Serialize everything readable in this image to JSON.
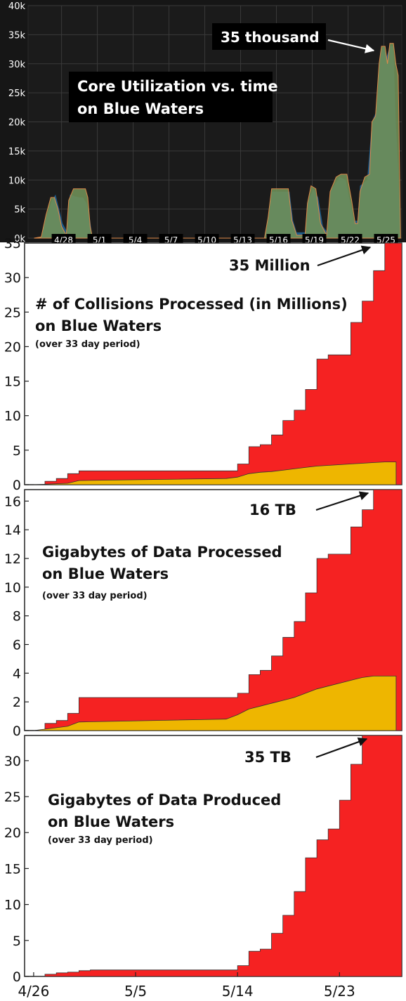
{
  "chart_data": [
    {
      "type": "area",
      "title": "Core Utilization vs. time on Blue Waters",
      "title_lines": [
        "Core Utilization vs. time",
        "on Blue Waters"
      ],
      "annotation": "35 thousand",
      "ytick_labels": [
        "0k",
        "5k",
        "10k",
        "15k",
        "20k",
        "25k",
        "30k",
        "35k",
        "40k"
      ],
      "yticks": [
        0,
        5000,
        10000,
        15000,
        20000,
        25000,
        30000,
        35000,
        40000
      ],
      "ylim": [
        0,
        40000
      ],
      "xtick_labels": [
        "4/28",
        "5/1",
        "5/4",
        "5/7",
        "5/10",
        "5/13",
        "5/16",
        "5/19",
        "5/22",
        "5/25"
      ],
      "xticks": [
        2,
        5,
        8,
        11,
        14,
        17,
        20,
        23,
        26,
        29
      ],
      "xlim": [
        -0.8,
        30.5
      ],
      "grid": true,
      "background": "dark",
      "series": [
        {
          "color": "#1e5c8a",
          "points": [
            [
              -0.3,
              0
            ],
            [
              0.3,
              200
            ],
            [
              0.7,
              3500
            ],
            [
              1.2,
              6500
            ],
            [
              1.5,
              7500
            ],
            [
              1.8,
              5000
            ],
            [
              2.1,
              2500
            ],
            [
              2.5,
              1000
            ],
            [
              2.7,
              7500
            ],
            [
              3.1,
              7200
            ],
            [
              3.5,
              7000
            ],
            [
              3.8,
              7000
            ],
            [
              4.1,
              6000
            ],
            [
              4.4,
              3000
            ],
            [
              4.6,
              0
            ],
            [
              5.0,
              0
            ],
            [
              19.0,
              0
            ],
            [
              19.3,
              3000
            ],
            [
              19.6,
              8000
            ],
            [
              21.1,
              8000
            ],
            [
              21.4,
              3000
            ],
            [
              21.7,
              1000
            ],
            [
              22.4,
              1000
            ],
            [
              22.6,
              6000
            ],
            [
              23.1,
              8500
            ],
            [
              23.5,
              7000
            ],
            [
              23.9,
              2000
            ],
            [
              24.3,
              1000
            ],
            [
              24.5,
              8000
            ],
            [
              25.3,
              10500
            ],
            [
              25.8,
              10000
            ],
            [
              26.2,
              6000
            ],
            [
              26.5,
              3000
            ],
            [
              26.8,
              3000
            ],
            [
              27.0,
              9000
            ],
            [
              27.6,
              10000
            ],
            [
              28.0,
              20000
            ],
            [
              28.4,
              22000
            ],
            [
              28.7,
              32000
            ],
            [
              29.0,
              33000
            ],
            [
              29.2,
              31000
            ],
            [
              29.5,
              33000
            ],
            [
              29.8,
              33000
            ],
            [
              30.0,
              20000
            ],
            [
              30.2,
              12000
            ],
            [
              30.4,
              0
            ]
          ]
        },
        {
          "color": "#6f8f58",
          "points": [
            [
              -0.3,
              0
            ],
            [
              0.3,
              200
            ],
            [
              0.7,
              4000
            ],
            [
              1.1,
              7000
            ],
            [
              1.4,
              7000
            ],
            [
              1.7,
              5000
            ],
            [
              2.0,
              2000
            ],
            [
              2.4,
              500
            ],
            [
              2.6,
              6500
            ],
            [
              3.0,
              8500
            ],
            [
              4.0,
              8500
            ],
            [
              4.2,
              7000
            ],
            [
              4.4,
              2000
            ],
            [
              4.6,
              0
            ],
            [
              19.0,
              0
            ],
            [
              19.3,
              3500
            ],
            [
              19.6,
              8500
            ],
            [
              21.0,
              8500
            ],
            [
              21.3,
              3000
            ],
            [
              21.7,
              500
            ],
            [
              22.4,
              500
            ],
            [
              22.6,
              6000
            ],
            [
              22.9,
              9000
            ],
            [
              23.3,
              8500
            ],
            [
              23.7,
              2500
            ],
            [
              24.2,
              500
            ],
            [
              24.5,
              8000
            ],
            [
              25.0,
              10500
            ],
            [
              25.4,
              11000
            ],
            [
              25.9,
              11000
            ],
            [
              26.3,
              6500
            ],
            [
              26.6,
              2500
            ],
            [
              26.8,
              2500
            ],
            [
              27.0,
              8000
            ],
            [
              27.4,
              10500
            ],
            [
              27.8,
              11000
            ],
            [
              28.0,
              20000
            ],
            [
              28.3,
              21000
            ],
            [
              28.6,
              30000
            ],
            [
              28.8,
              33000
            ],
            [
              29.1,
              33000
            ],
            [
              29.3,
              30000
            ],
            [
              29.5,
              33500
            ],
            [
              29.8,
              33500
            ],
            [
              30.0,
              30000
            ],
            [
              30.2,
              28000
            ],
            [
              30.4,
              0
            ]
          ]
        }
      ]
    },
    {
      "type": "area",
      "title": "# of Collisions Processed (in Millions) on Blue Waters",
      "title_lines": [
        "# of Collisions Processed (in Millions)",
        "on Blue Waters"
      ],
      "subtitle": "(over 33 day period)",
      "annotation": "35 Million",
      "ytick_labels": [
        "0",
        "5",
        "10",
        "15",
        "20",
        "25",
        "30",
        "35"
      ],
      "yticks": [
        0,
        5,
        10,
        15,
        20,
        25,
        30,
        35
      ],
      "ylim": [
        0,
        35
      ],
      "xlim": [
        -0.8,
        32.5
      ],
      "grid": false,
      "series": [
        {
          "color": "#f52222",
          "step": [
            [
              0,
              0
            ],
            [
              1,
              0.5
            ],
            [
              2,
              0.9
            ],
            [
              3,
              1.6
            ],
            [
              4,
              2.0
            ],
            [
              5,
              2.0
            ],
            [
              6,
              2.0
            ],
            [
              7,
              2.0
            ],
            [
              8,
              2.0
            ],
            [
              9,
              2.0
            ],
            [
              10,
              2.0
            ],
            [
              11,
              2.0
            ],
            [
              12,
              2.0
            ],
            [
              13,
              2.0
            ],
            [
              14,
              2.0
            ],
            [
              15,
              2.0
            ],
            [
              16,
              2.0
            ],
            [
              17,
              2.0
            ],
            [
              18,
              3.0
            ],
            [
              19,
              5.5
            ],
            [
              20,
              5.8
            ],
            [
              21,
              7.2
            ],
            [
              22,
              9.3
            ],
            [
              23,
              10.8
            ],
            [
              24,
              13.8
            ],
            [
              25,
              18.2
            ],
            [
              26,
              18.8
            ],
            [
              27,
              18.8
            ],
            [
              28,
              23.5
            ],
            [
              29,
              26.6
            ],
            [
              30,
              31.0
            ],
            [
              31,
              35.0
            ],
            [
              32,
              35.0
            ]
          ]
        },
        {
          "color": "#eeb600",
          "points": [
            [
              0,
              0
            ],
            [
              3,
              0.2
            ],
            [
              4,
              0.6
            ],
            [
              17,
              0.9
            ],
            [
              18,
              1.1
            ],
            [
              19,
              1.6
            ],
            [
              20,
              1.8
            ],
            [
              21,
              1.9
            ],
            [
              22,
              2.1
            ],
            [
              23,
              2.3
            ],
            [
              24,
              2.5
            ],
            [
              25,
              2.7
            ],
            [
              26,
              2.8
            ],
            [
              27,
              2.9
            ],
            [
              28,
              3.0
            ],
            [
              29,
              3.1
            ],
            [
              30,
              3.2
            ],
            [
              31,
              3.3
            ],
            [
              32,
              3.3
            ]
          ]
        }
      ]
    },
    {
      "type": "area",
      "title": "Gigabytes of Data Processed on Blue Waters",
      "title_lines": [
        "Gigabytes of Data Processed",
        "on Blue Waters"
      ],
      "subtitle": "(over 33 day period)",
      "annotation": "16 TB",
      "ytick_labels": [
        "0",
        "2",
        "4",
        "6",
        "8",
        "10",
        "12",
        "14",
        "16"
      ],
      "yticks": [
        0,
        2,
        4,
        6,
        8,
        10,
        12,
        14,
        16
      ],
      "ylim": [
        0,
        16.8
      ],
      "xlim": [
        -0.8,
        32.5
      ],
      "grid": false,
      "series": [
        {
          "color": "#f52222",
          "step": [
            [
              0,
              0
            ],
            [
              1,
              0.5
            ],
            [
              2,
              0.7
            ],
            [
              3,
              1.2
            ],
            [
              4,
              2.3
            ],
            [
              5,
              2.3
            ],
            [
              6,
              2.3
            ],
            [
              7,
              2.3
            ],
            [
              8,
              2.3
            ],
            [
              9,
              2.3
            ],
            [
              10,
              2.3
            ],
            [
              11,
              2.3
            ],
            [
              12,
              2.3
            ],
            [
              13,
              2.3
            ],
            [
              14,
              2.3
            ],
            [
              15,
              2.3
            ],
            [
              16,
              2.3
            ],
            [
              17,
              2.3
            ],
            [
              18,
              2.6
            ],
            [
              19,
              3.9
            ],
            [
              20,
              4.2
            ],
            [
              21,
              5.2
            ],
            [
              22,
              6.5
            ],
            [
              23,
              7.6
            ],
            [
              24,
              9.6
            ],
            [
              25,
              12.0
            ],
            [
              26,
              12.3
            ],
            [
              27,
              12.3
            ],
            [
              28,
              14.2
            ],
            [
              29,
              15.4
            ],
            [
              30,
              16.8
            ],
            [
              31,
              16.8
            ],
            [
              32,
              16.8
            ]
          ]
        },
        {
          "color": "#eeb600",
          "points": [
            [
              0,
              0
            ],
            [
              3,
              0.3
            ],
            [
              4,
              0.6
            ],
            [
              17,
              0.8
            ],
            [
              18,
              1.1
            ],
            [
              19,
              1.5
            ],
            [
              20,
              1.7
            ],
            [
              21,
              1.9
            ],
            [
              22,
              2.1
            ],
            [
              23,
              2.3
            ],
            [
              24,
              2.6
            ],
            [
              25,
              2.9
            ],
            [
              26,
              3.1
            ],
            [
              27,
              3.3
            ],
            [
              28,
              3.5
            ],
            [
              29,
              3.7
            ],
            [
              30,
              3.8
            ],
            [
              31,
              3.8
            ],
            [
              32,
              3.8
            ]
          ]
        }
      ]
    },
    {
      "type": "area",
      "title": "Gigabytes of Data Produced on Blue Waters",
      "title_lines": [
        "Gigabytes of Data Produced",
        "on Blue Waters"
      ],
      "subtitle": "(over 33 day period)",
      "annotation": "35 TB",
      "ytick_labels": [
        "0",
        "5",
        "10",
        "15",
        "20",
        "25",
        "30"
      ],
      "yticks": [
        0,
        5,
        10,
        15,
        20,
        25,
        30
      ],
      "ylim": [
        0,
        33.5
      ],
      "xtick_labels": [
        "4/26",
        "5/5",
        "5/14",
        "5/23"
      ],
      "xticks": [
        0,
        9,
        18,
        27
      ],
      "xlim": [
        -0.8,
        32.5
      ],
      "grid": false,
      "series": [
        {
          "color": "#f52222",
          "step": [
            [
              0,
              0
            ],
            [
              1,
              0.3
            ],
            [
              2,
              0.5
            ],
            [
              3,
              0.6
            ],
            [
              4,
              0.8
            ],
            [
              5,
              0.9
            ],
            [
              6,
              0.9
            ],
            [
              7,
              0.9
            ],
            [
              8,
              0.9
            ],
            [
              9,
              0.9
            ],
            [
              10,
              0.9
            ],
            [
              11,
              0.9
            ],
            [
              12,
              0.9
            ],
            [
              13,
              0.9
            ],
            [
              14,
              0.9
            ],
            [
              15,
              0.9
            ],
            [
              16,
              0.9
            ],
            [
              17,
              0.9
            ],
            [
              18,
              1.5
            ],
            [
              19,
              3.5
            ],
            [
              20,
              3.8
            ],
            [
              21,
              6.0
            ],
            [
              22,
              8.5
            ],
            [
              23,
              11.8
            ],
            [
              24,
              16.5
            ],
            [
              25,
              19.0
            ],
            [
              26,
              20.5
            ],
            [
              27,
              24.5
            ],
            [
              28,
              29.5
            ],
            [
              29,
              33.5
            ],
            [
              30,
              33.5
            ],
            [
              31,
              33.5
            ],
            [
              32,
              33.5
            ]
          ]
        }
      ]
    }
  ]
}
